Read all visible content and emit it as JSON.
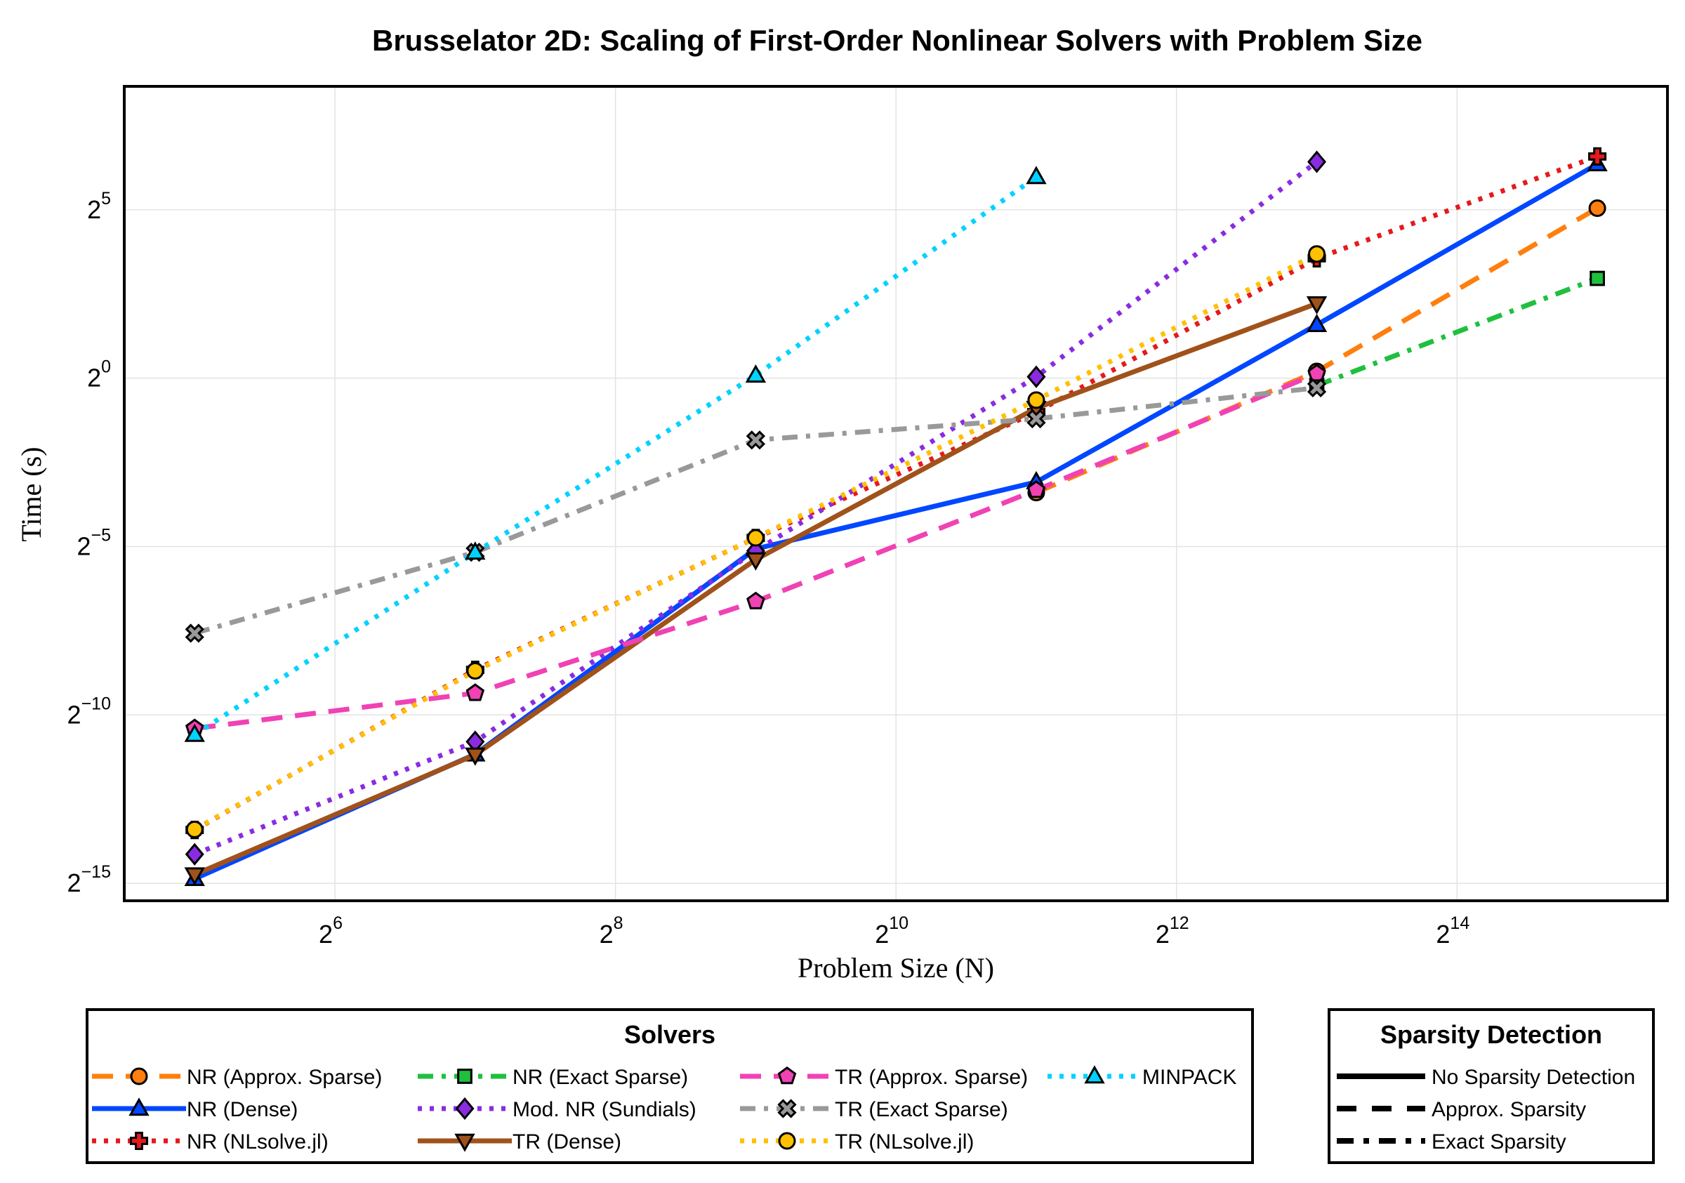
{
  "chart_data": {
    "type": "line",
    "title": "Brusselator 2D: Scaling of First-Order Nonlinear Solvers with Problem Size",
    "xlabel": "Problem Size (N)",
    "ylabel": "Time (s)",
    "x_scale": "log2",
    "y_scale": "log2",
    "xlim": [
      22.6,
      46341
    ],
    "ylim": [
      2.13e-05,
      406.4
    ],
    "x_ticks": [
      {
        "value": 64,
        "base": "2",
        "exp": "6"
      },
      {
        "value": 256,
        "base": "2",
        "exp": "8"
      },
      {
        "value": 1024,
        "base": "2",
        "exp": "10"
      },
      {
        "value": 4096,
        "base": "2",
        "exp": "12"
      },
      {
        "value": 16384,
        "base": "2",
        "exp": "14"
      }
    ],
    "y_ticks": [
      {
        "value": 32,
        "base": "2",
        "exp": "5"
      },
      {
        "value": 1,
        "base": "2",
        "exp": "0"
      },
      {
        "value": 0.03125,
        "base": "2",
        "exp": "−5"
      },
      {
        "value": 0.0009765625,
        "base": "2",
        "exp": "−10"
      },
      {
        "value": 3.0517578125e-05,
        "base": "2",
        "exp": "−15"
      }
    ],
    "grid": true,
    "series": [
      {
        "name": "NR (Approx. Sparse)",
        "color": "#FF7F0E",
        "dash": "dash",
        "marker": "circle",
        "x": [
          2048,
          8192,
          32768
        ],
        "y": [
          0.095,
          1.15,
          33.1
        ]
      },
      {
        "name": "NR (Dense)",
        "color": "#0047FF",
        "dash": "solid",
        "marker": "triangle-up",
        "x": [
          32,
          128,
          512,
          2048,
          8192,
          32768
        ],
        "y": [
          3.35e-05,
          0.000435,
          0.0298,
          0.118,
          3.0,
          82.0
        ]
      },
      {
        "name": "NR (NLsolve.jl)",
        "color": "#E41A1C",
        "dash": "dot",
        "marker": "cross",
        "x": [
          32,
          128,
          512,
          2048,
          8192,
          32768
        ],
        "y": [
          9.15e-05,
          0.00247,
          0.0373,
          0.497,
          11.8,
          96.0
        ]
      },
      {
        "name": "NR (Exact Sparse)",
        "color": "#1FC03E",
        "dash": "dashdot",
        "marker": "square",
        "x": [
          8192,
          32768
        ],
        "y": [
          0.86,
          7.8
        ]
      },
      {
        "name": "Mod. NR (Sundials)",
        "color": "#8A2BE2",
        "dash": "dot",
        "marker": "diamond",
        "x": [
          32,
          128,
          512,
          2048,
          8192
        ],
        "y": [
          5.55e-05,
          0.000563,
          0.0286,
          1.03,
          86.0
        ]
      },
      {
        "name": "TR (Dense)",
        "color": "#A0521A",
        "dash": "solid",
        "marker": "triangle-down",
        "x": [
          32,
          128,
          512,
          2048,
          8192
        ],
        "y": [
          3.65e-05,
          0.00043,
          0.0239,
          0.54,
          4.65
        ]
      },
      {
        "name": "TR (Approx. Sparse)",
        "color": "#F042B4",
        "dash": "dash",
        "marker": "pentagon",
        "x": [
          32,
          128,
          512,
          2048,
          8192
        ],
        "y": [
          0.00074,
          0.00153,
          0.0101,
          0.1,
          1.1
        ]
      },
      {
        "name": "TR (Exact Sparse)",
        "color": "#999999",
        "dash": "dashdot",
        "marker": "x",
        "x": [
          32,
          128,
          512,
          2048,
          8192
        ],
        "y": [
          0.00525,
          0.0278,
          0.28,
          0.434,
          0.82
        ]
      },
      {
        "name": "TR (NLsolve.jl)",
        "color": "#FFC000",
        "dash": "dot",
        "marker": "circle",
        "x": [
          32,
          128,
          512,
          2048,
          8192
        ],
        "y": [
          9.25e-05,
          0.00242,
          0.0374,
          0.637,
          12.9
        ]
      },
      {
        "name": "MINPACK",
        "color": "#00D2FF",
        "dash": "dot",
        "marker": "triangle-up",
        "x": [
          32,
          128,
          512,
          2048
        ],
        "y": [
          0.00065,
          0.0277,
          1.06,
          63.0
        ]
      }
    ]
  },
  "legend": {
    "solvers_title": "Solvers",
    "sparsity_title": "Sparsity Detection",
    "sparsity_items": [
      {
        "label": "No Sparsity Detection",
        "dash": "solid"
      },
      {
        "label": "Approx. Sparsity",
        "dash": "dash"
      },
      {
        "label": "Exact Sparsity",
        "dash": "dashdot"
      }
    ]
  }
}
